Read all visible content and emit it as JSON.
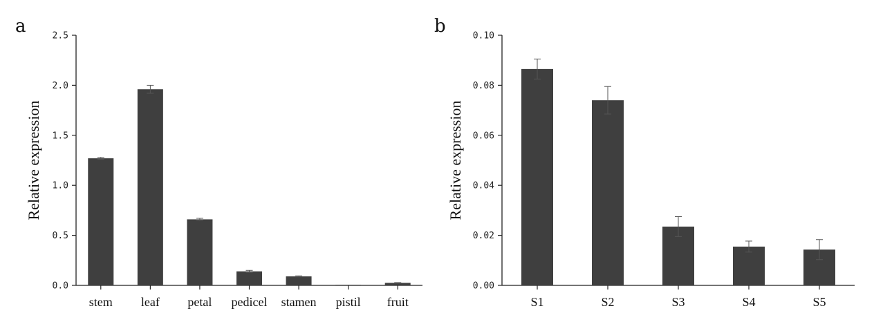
{
  "chart_data": [
    {
      "panel_label": "a",
      "type": "bar",
      "ylabel": "Relative expression",
      "xlabel": "",
      "ylim": [
        0,
        2.5
      ],
      "yticks": [
        "0.0",
        "0.5",
        "1.0",
        "1.5",
        "2.0",
        "2.5"
      ],
      "categories": [
        "stem",
        "leaf",
        "petal",
        "pedicel",
        "stamen",
        "pistil",
        "fruit"
      ],
      "values": [
        1.27,
        1.96,
        0.66,
        0.14,
        0.09,
        0.003,
        0.025
      ],
      "errors": [
        0.01,
        0.04,
        0.01,
        0.01,
        0.005,
        0.0,
        0.003
      ],
      "bar_color": "#3f3f3f",
      "grid": false
    },
    {
      "panel_label": "b",
      "type": "bar",
      "ylabel": "Relative expression",
      "xlabel": "",
      "ylim": [
        0,
        0.1
      ],
      "yticks": [
        "0.00",
        "0.02",
        "0.04",
        "0.06",
        "0.08",
        "0.10"
      ],
      "categories": [
        "S1",
        "S2",
        "S3",
        "S4",
        "S5"
      ],
      "values": [
        0.0865,
        0.074,
        0.0235,
        0.0155,
        0.0143
      ],
      "errors": [
        0.004,
        0.0055,
        0.004,
        0.0022,
        0.004
      ],
      "bar_color": "#3f3f3f",
      "grid": false
    }
  ]
}
